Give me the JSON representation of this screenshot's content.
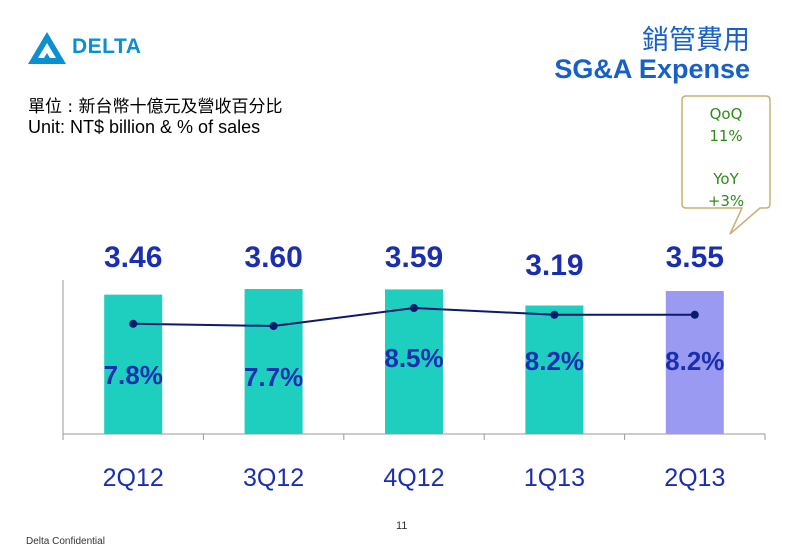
{
  "header": {
    "logo_text": "DELTA",
    "title_zh": "銷管費用",
    "title_en": "SG&A Expense",
    "unit_zh": "單位 : 新台幣十億元及營收百分比",
    "unit_en": "Unit: NT$ billion & % of sales"
  },
  "callout": {
    "qoq_label": "QoQ",
    "qoq_value": "11%",
    "yoy_label": "YoY",
    "yoy_value": "+3%"
  },
  "colors": {
    "bar": "#1ecfc0",
    "bar_highlight": "#9a9af2",
    "line": "#0c1a6e",
    "label": "#1a2fb0",
    "callout_border": "#c8b070",
    "callout_text": "#2e8b1a"
  },
  "chart_data": {
    "type": "bar",
    "categories": [
      "2Q12",
      "3Q12",
      "4Q12",
      "1Q13",
      "2Q13"
    ],
    "series": [
      {
        "values": [
          3.46,
          3.6,
          3.59,
          3.19,
          3.55
        ]
      },
      {
        "type": "line",
        "values": [
          7.8,
          7.7,
          8.5,
          8.2,
          8.2
        ]
      }
    ],
    "value_labels": [
      "3.46",
      "3.60",
      "3.59",
      "3.19",
      "3.55"
    ],
    "percent_labels": [
      "7.8%",
      "7.7%",
      "8.5%",
      "8.2%",
      "8.2%"
    ],
    "highlight_index": 4
  },
  "footer": {
    "confidential": "Delta Confidential",
    "page": "11"
  }
}
